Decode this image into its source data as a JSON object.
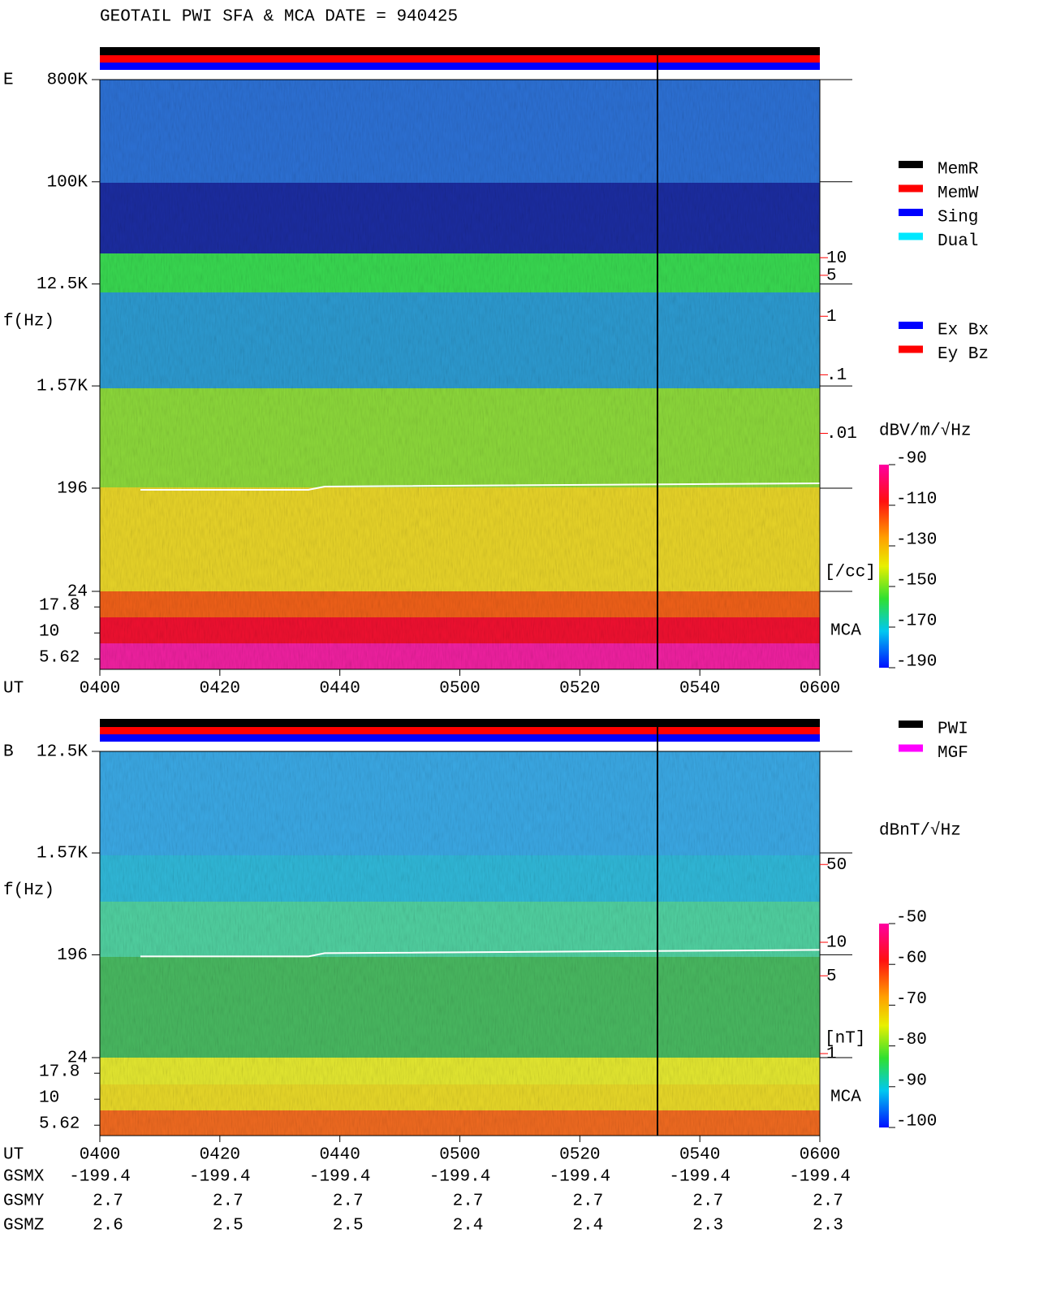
{
  "title": "GEOTAIL  PWI SFA & MCA   DATE = 940425",
  "chart_data": [
    {
      "type": "spectrogram",
      "panel_label": "E",
      "y_label": "f(Hz)",
      "x_label": "UT",
      "categories": [
        "0400",
        "0420",
        "0440",
        "0500",
        "0520",
        "0540",
        "0600"
      ],
      "log_scale": true,
      "ylim": [
        24,
        800000
      ],
      "yticks": [
        {
          "value": 800000,
          "label": "800K"
        },
        {
          "value": 100000,
          "label": "100K"
        },
        {
          "value": 12500,
          "label": "12.5K"
        },
        {
          "value": 1570,
          "label": "1.57K"
        },
        196,
        24
      ],
      "mca_label": "MCA",
      "mca_ticks": [
        17.8,
        10,
        5.62
      ],
      "y2_label": "[/cc]",
      "y2_color": "#ff0000",
      "y2lim": [
        2e-05,
        11000
      ],
      "y2ticks": [
        10,
        5,
        1,
        {
          "value": 0.1,
          "label": ".1"
        },
        {
          "value": 0.01,
          "label": ".01"
        }
      ],
      "colorbar": {
        "label": "dBV/m/√Hz",
        "clim": [
          -190,
          -90
        ],
        "ticks": [
          -90,
          -110,
          -130,
          -150,
          -170,
          -190
        ]
      },
      "legend": [
        {
          "name": "MemR",
          "color": "#000000"
        },
        {
          "name": "MemW",
          "color": "#ff0000"
        },
        {
          "name": "Sing",
          "color": "#0000ff"
        },
        {
          "name": "Dual",
          "color": "#00e8ff"
        }
      ],
      "legend2": [
        {
          "name": "Ex Bx",
          "color": "#0000ff"
        },
        {
          "name": "Ey Bz",
          "color": "#ff0000"
        }
      ]
    },
    {
      "type": "spectrogram",
      "panel_label": "B",
      "y_label": "f(Hz)",
      "x_label": "UT",
      "categories": [
        "0400",
        "0420",
        "0440",
        "0500",
        "0520",
        "0540",
        "0600"
      ],
      "log_scale": true,
      "ylim": [
        24,
        12500
      ],
      "yticks": [
        {
          "value": 12500,
          "label": "12.5K"
        },
        {
          "value": 1570,
          "label": "1.57K"
        },
        196,
        24
      ],
      "mca_label": "MCA",
      "mca_ticks": [
        17.8,
        10,
        5.62
      ],
      "y2_label": "[nT]",
      "y2_color": "#ff0000",
      "y2lim": [
        0.92,
        519
      ],
      "y2ticks": [
        50,
        10,
        5,
        1
      ],
      "colorbar": {
        "label": "dBnT/√Hz",
        "clim": [
          -100,
          -50
        ],
        "ticks": [
          -50,
          -60,
          -70,
          -80,
          -90,
          -100
        ]
      },
      "legend": [
        {
          "name": "PWI",
          "color": "#000000"
        },
        {
          "name": "MGF",
          "color": "#ff00ff"
        }
      ]
    }
  ],
  "orbit": {
    "rows": [
      {
        "name": "GSMX",
        "values": [
          -199.4,
          -199.4,
          -199.4,
          -199.4,
          -199.4,
          -199.4,
          -199.4
        ]
      },
      {
        "name": "GSMY",
        "values": [
          2.7,
          2.7,
          2.7,
          2.7,
          2.7,
          2.7,
          2.7
        ]
      },
      {
        "name": "GSMZ",
        "values": [
          2.6,
          2.5,
          2.5,
          2.4,
          2.4,
          2.3,
          2.3
        ]
      }
    ]
  }
}
